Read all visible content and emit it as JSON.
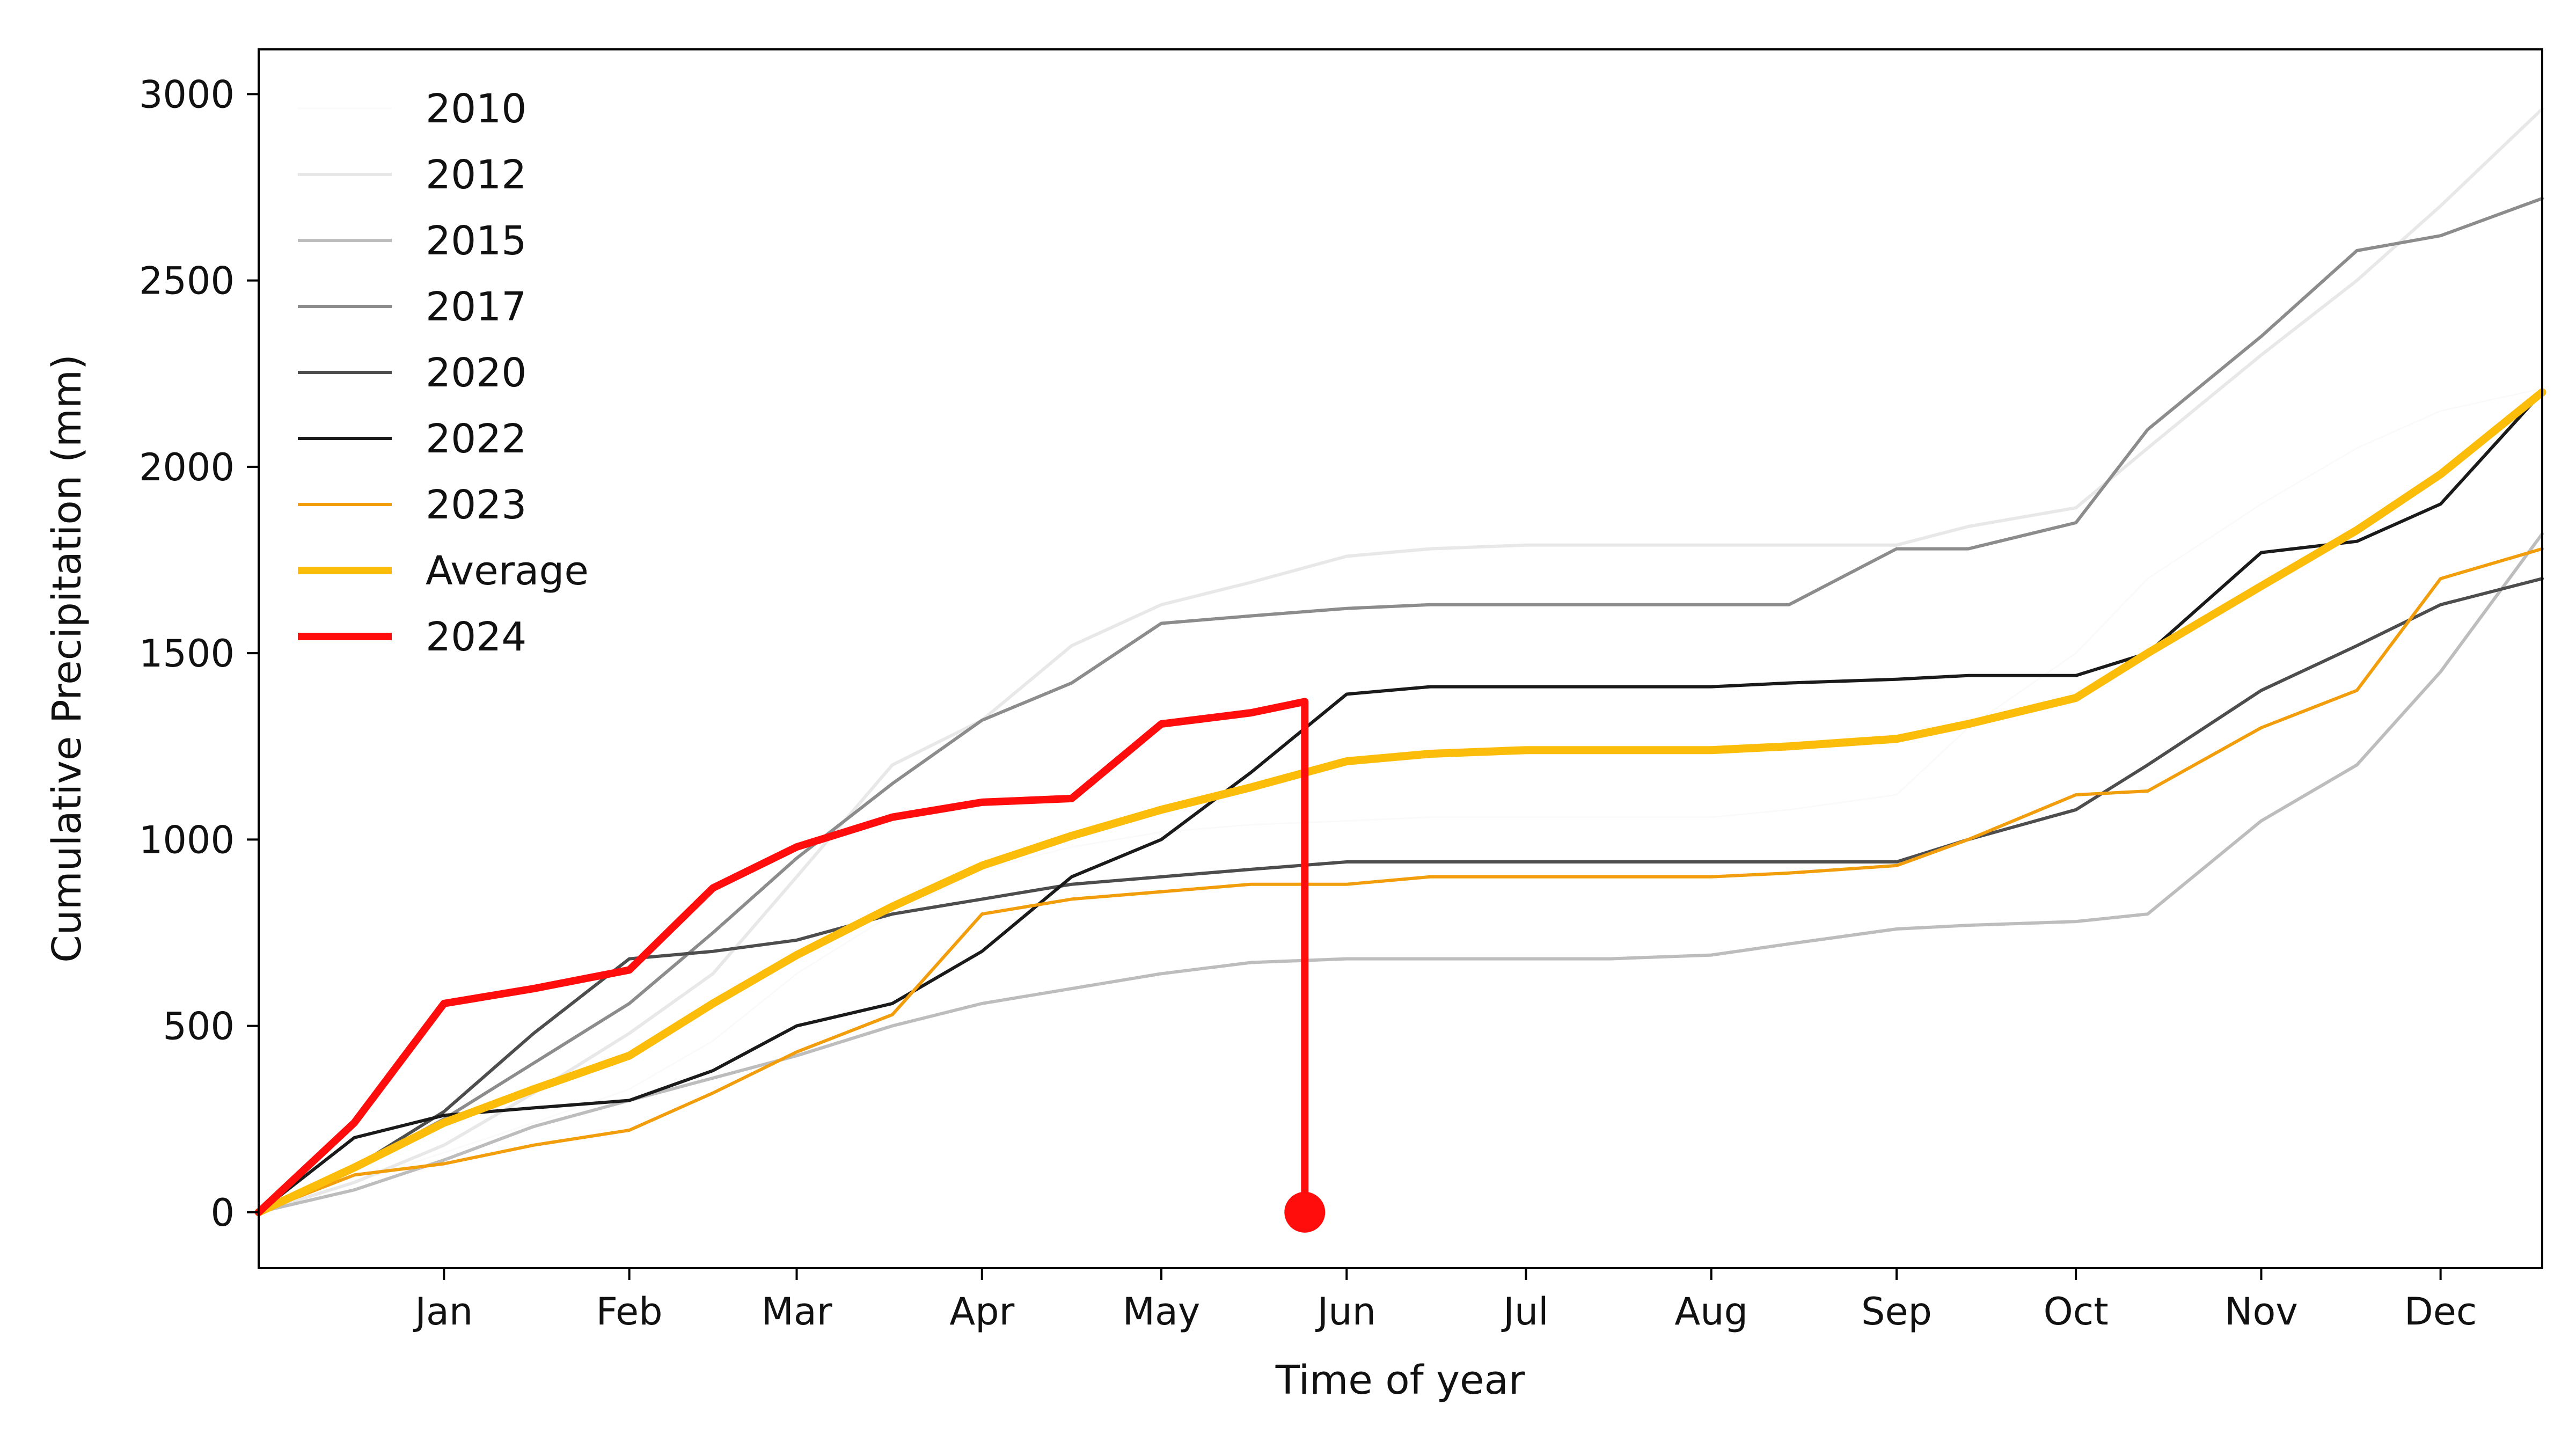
{
  "chart_data": {
    "type": "line",
    "title": "",
    "xlabel": "Time of year",
    "ylabel": "Cumulative Precipitation (mm)",
    "xlim": [
      -16,
      366
    ],
    "ylim": [
      -150,
      3120
    ],
    "x_ticks": [
      {
        "label": "Jan",
        "x": 15
      },
      {
        "label": "Feb",
        "x": 46
      },
      {
        "label": "Mar",
        "x": 74
      },
      {
        "label": "Apr",
        "x": 105
      },
      {
        "label": "May",
        "x": 135
      },
      {
        "label": "Jun",
        "x": 166
      },
      {
        "label": "Jul",
        "x": 196
      },
      {
        "label": "Aug",
        "x": 227
      },
      {
        "label": "Sep",
        "x": 258
      },
      {
        "label": "Oct",
        "x": 288
      },
      {
        "label": "Nov",
        "x": 319
      },
      {
        "label": "Dec",
        "x": 349
      }
    ],
    "y_ticks": [
      0,
      500,
      1000,
      1500,
      2000,
      2500,
      3000
    ],
    "grid": false,
    "legend_position": "top-left",
    "series": [
      {
        "name": "2010",
        "color": "#fafafa",
        "width": 3,
        "x": [
          -16,
          0,
          15,
          30,
          46,
          60,
          74,
          90,
          105,
          120,
          135,
          150,
          166,
          180,
          196,
          210,
          227,
          240,
          258,
          270,
          288,
          300,
          319,
          335,
          349,
          366
        ],
        "y": [
          0,
          80,
          160,
          240,
          330,
          460,
          640,
          800,
          920,
          980,
          1020,
          1040,
          1050,
          1060,
          1060,
          1060,
          1060,
          1080,
          1120,
          1300,
          1500,
          1700,
          1900,
          2050,
          2150,
          2210
        ]
      },
      {
        "name": "2012",
        "color": "#e8e8e8",
        "width": 6,
        "x": [
          -16,
          0,
          15,
          30,
          46,
          60,
          74,
          90,
          105,
          120,
          135,
          150,
          166,
          180,
          196,
          210,
          227,
          240,
          258,
          270,
          288,
          300,
          319,
          335,
          349,
          366
        ],
        "y": [
          0,
          80,
          180,
          320,
          480,
          640,
          900,
          1200,
          1320,
          1520,
          1630,
          1690,
          1760,
          1780,
          1790,
          1790,
          1790,
          1790,
          1790,
          1840,
          1890,
          2050,
          2300,
          2500,
          2700,
          2960
        ]
      },
      {
        "name": "2015",
        "color": "#bdbdbd",
        "width": 6,
        "x": [
          -16,
          0,
          15,
          30,
          46,
          60,
          74,
          90,
          105,
          120,
          135,
          150,
          166,
          180,
          196,
          210,
          227,
          240,
          258,
          270,
          288,
          300,
          319,
          335,
          349,
          366
        ],
        "y": [
          0,
          60,
          140,
          230,
          300,
          360,
          420,
          500,
          560,
          600,
          640,
          670,
          680,
          680,
          680,
          680,
          690,
          720,
          760,
          770,
          780,
          800,
          1050,
          1200,
          1450,
          1820
        ]
      },
      {
        "name": "2017",
        "color": "#8c8c8c",
        "width": 6,
        "x": [
          -16,
          0,
          15,
          30,
          46,
          60,
          74,
          90,
          105,
          120,
          135,
          150,
          166,
          180,
          196,
          210,
          227,
          240,
          258,
          270,
          288,
          300,
          319,
          335,
          349,
          366
        ],
        "y": [
          0,
          120,
          250,
          400,
          560,
          750,
          950,
          1150,
          1320,
          1420,
          1580,
          1600,
          1620,
          1630,
          1630,
          1630,
          1630,
          1630,
          1780,
          1780,
          1850,
          2100,
          2350,
          2580,
          2620,
          2720
        ]
      },
      {
        "name": "2020",
        "color": "#4d4d4d",
        "width": 6,
        "x": [
          -16,
          0,
          15,
          30,
          46,
          60,
          74,
          90,
          105,
          120,
          135,
          150,
          166,
          180,
          196,
          210,
          227,
          240,
          258,
          270,
          288,
          300,
          319,
          335,
          349,
          366
        ],
        "y": [
          0,
          120,
          270,
          480,
          680,
          700,
          730,
          800,
          840,
          880,
          900,
          920,
          940,
          940,
          940,
          940,
          940,
          940,
          940,
          1000,
          1080,
          1200,
          1400,
          1520,
          1630,
          1700
        ]
      },
      {
        "name": "2022",
        "color": "#1a1a1a",
        "width": 6,
        "x": [
          -16,
          0,
          15,
          30,
          46,
          60,
          74,
          90,
          105,
          120,
          135,
          150,
          166,
          180,
          196,
          210,
          227,
          240,
          258,
          270,
          288,
          300,
          319,
          335,
          349,
          366
        ],
        "y": [
          0,
          200,
          260,
          280,
          300,
          380,
          500,
          560,
          700,
          900,
          1000,
          1180,
          1390,
          1410,
          1410,
          1410,
          1410,
          1420,
          1430,
          1440,
          1440,
          1500,
          1770,
          1800,
          1900,
          2200
        ]
      },
      {
        "name": "2023",
        "color": "#f29e0c",
        "width": 6,
        "x": [
          -16,
          0,
          15,
          30,
          46,
          60,
          74,
          90,
          105,
          120,
          135,
          150,
          166,
          180,
          196,
          210,
          227,
          240,
          258,
          270,
          288,
          300,
          319,
          335,
          349,
          366
        ],
        "y": [
          0,
          100,
          130,
          180,
          220,
          320,
          430,
          530,
          800,
          840,
          860,
          880,
          880,
          900,
          900,
          900,
          900,
          910,
          930,
          1000,
          1120,
          1130,
          1300,
          1400,
          1700,
          1780
        ]
      },
      {
        "name": "Average",
        "color": "#fbbd0a",
        "width": 15,
        "x": [
          -16,
          0,
          15,
          30,
          46,
          60,
          74,
          90,
          105,
          120,
          135,
          150,
          166,
          180,
          196,
          210,
          227,
          240,
          258,
          270,
          288,
          300,
          319,
          335,
          349,
          366
        ],
        "y": [
          0,
          120,
          240,
          330,
          420,
          560,
          690,
          820,
          930,
          1010,
          1080,
          1140,
          1210,
          1230,
          1240,
          1240,
          1240,
          1250,
          1270,
          1310,
          1380,
          1500,
          1680,
          1830,
          1980,
          2200
        ]
      },
      {
        "name": "2024",
        "color": "#ff0d0d",
        "width": 14,
        "x": [
          -16,
          0,
          15,
          30,
          46,
          60,
          74,
          90,
          105,
          120,
          135,
          150,
          159,
          159
        ],
        "y": [
          0,
          240,
          560,
          600,
          650,
          870,
          980,
          1060,
          1100,
          1110,
          1310,
          1340,
          1370,
          0
        ]
      }
    ]
  }
}
